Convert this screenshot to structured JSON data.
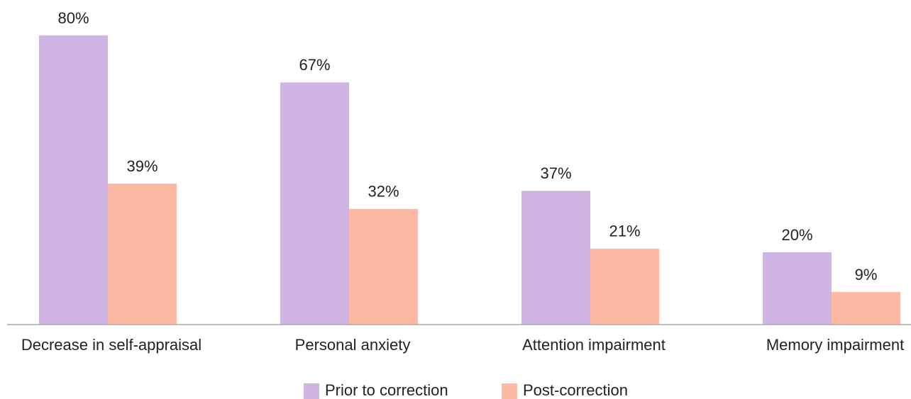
{
  "chart_data": {
    "type": "bar",
    "categories": [
      "Decrease in self-appraisal",
      "Personal anxiety",
      "Attention impairment",
      "Memory impairment"
    ],
    "series": [
      {
        "name": "Prior to correction",
        "color": "#cfb5e3",
        "values": [
          80,
          67,
          37,
          20
        ],
        "value_labels": [
          "80%",
          "67%",
          "37%",
          "20%"
        ]
      },
      {
        "name": "Post-correction",
        "color": "#fdb9a3",
        "values": [
          39,
          32,
          21,
          9
        ],
        "value_labels": [
          "39%",
          "32%",
          "21%",
          "9%"
        ]
      }
    ],
    "legend": "bottom"
  }
}
